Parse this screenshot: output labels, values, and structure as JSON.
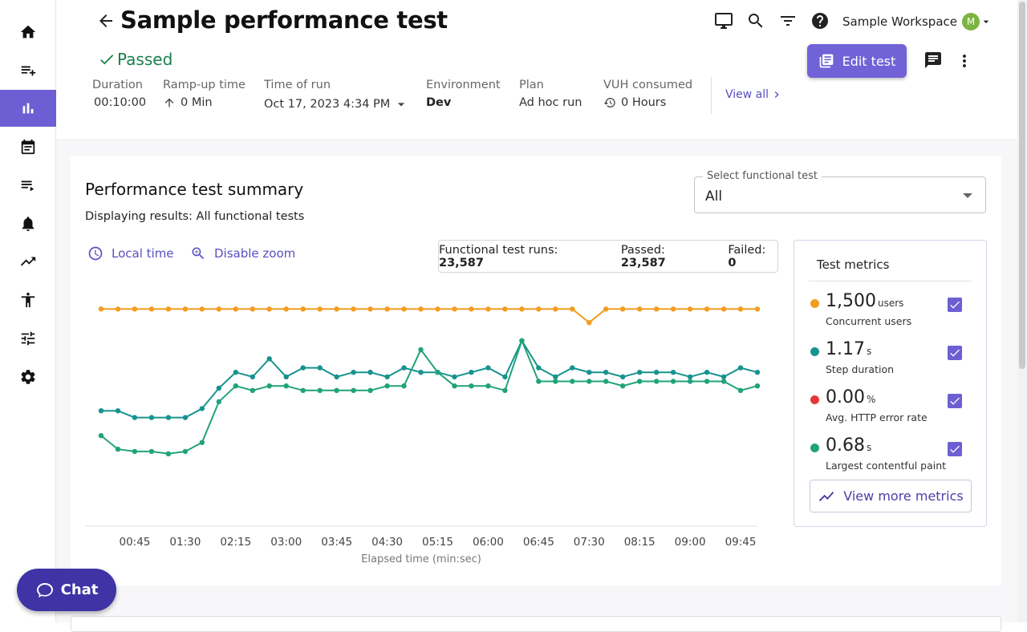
{
  "header": {
    "title": "Sample performance test",
    "status": "Passed",
    "workspace": "Sample Workspace",
    "avatar_initial": "M",
    "edit_label": "Edit test",
    "view_all": "View all",
    "meta": [
      {
        "label": "Duration",
        "value": "00:10:00"
      },
      {
        "label": "Ramp-up time",
        "value": "0 Min"
      },
      {
        "label": "Time of run",
        "value": "Oct 17, 2023 4:34 PM"
      },
      {
        "label": "Environment",
        "value": "Dev"
      },
      {
        "label": "Plan",
        "value": "Ad hoc run"
      },
      {
        "label": "VUH consumed",
        "value": "0 Hours"
      }
    ]
  },
  "sidebar": {
    "items": [
      {
        "icon": "home-icon"
      },
      {
        "icon": "playlist-add-icon"
      },
      {
        "icon": "bar-chart-icon",
        "active": true
      },
      {
        "icon": "calendar-icon"
      },
      {
        "icon": "queue-icon"
      },
      {
        "icon": "bell-icon"
      },
      {
        "icon": "trending-up-icon"
      },
      {
        "icon": "accessibility-icon"
      },
      {
        "icon": "tune-icon"
      },
      {
        "icon": "gear-icon"
      }
    ]
  },
  "summary": {
    "title": "Performance test summary",
    "subtitle": "Displaying results: All functional tests",
    "select_label": "Select functional test",
    "select_value": "All",
    "local_time": "Local time",
    "disable_zoom": "Disable zoom",
    "runs_label": "Functional test runs:",
    "runs_value": "23,587",
    "passed_label": "Passed:",
    "passed_value": "23,587",
    "failed_label": "Failed:",
    "failed_value": "0"
  },
  "metrics": {
    "title": "Test metrics",
    "items": [
      {
        "value": "1,500",
        "unit": "users",
        "name": "Concurrent users",
        "color": "#f29d1f"
      },
      {
        "value": "1.17",
        "unit": "s",
        "name": "Step duration",
        "color": "#17938f"
      },
      {
        "value": "0.00",
        "unit": "%",
        "name": "Avg. HTTP error rate",
        "color": "#e53935"
      },
      {
        "value": "0.68",
        "unit": "s",
        "name": "Largest contentful paint",
        "color": "#20a37a"
      }
    ],
    "view_more": "View more metrics"
  },
  "chat": {
    "label": "Chat"
  },
  "chart_data": {
    "type": "line",
    "xlabel": "Elapsed time (min:sec)",
    "tick_labels": [
      "00:45",
      "01:30",
      "02:15",
      "03:00",
      "03:45",
      "04:30",
      "05:15",
      "06:00",
      "06:45",
      "07:30",
      "08:15",
      "09:00",
      "09:45"
    ],
    "x": [
      15,
      30,
      45,
      60,
      75,
      90,
      105,
      120,
      135,
      150,
      165,
      180,
      195,
      210,
      225,
      240,
      255,
      270,
      285,
      300,
      315,
      330,
      345,
      360,
      375,
      390,
      405,
      420,
      435,
      450,
      465,
      480,
      495,
      510,
      525,
      540,
      555,
      570,
      585,
      600
    ],
    "series": [
      {
        "color": "#f29d1f",
        "values": [
          0.96,
          0.96,
          0.96,
          0.96,
          0.96,
          0.96,
          0.96,
          0.96,
          0.96,
          0.96,
          0.96,
          0.96,
          0.96,
          0.96,
          0.96,
          0.96,
          0.96,
          0.96,
          0.96,
          0.96,
          0.96,
          0.96,
          0.96,
          0.96,
          0.96,
          0.96,
          0.96,
          0.96,
          0.96,
          0.9,
          0.96,
          0.96,
          0.96,
          0.96,
          0.96,
          0.96,
          0.96,
          0.96,
          0.96,
          0.96
        ]
      },
      {
        "color": "#17938f",
        "values": [
          0.51,
          0.51,
          0.48,
          0.48,
          0.48,
          0.48,
          0.52,
          0.61,
          0.68,
          0.66,
          0.74,
          0.66,
          0.7,
          0.7,
          0.66,
          0.68,
          0.68,
          0.66,
          0.7,
          0.68,
          0.68,
          0.66,
          0.68,
          0.7,
          0.66,
          0.82,
          0.7,
          0.66,
          0.7,
          0.68,
          0.68,
          0.66,
          0.68,
          0.68,
          0.68,
          0.66,
          0.68,
          0.66,
          0.7,
          0.68
        ]
      },
      {
        "color": "#20a37a",
        "values": [
          0.4,
          0.34,
          0.33,
          0.33,
          0.32,
          0.33,
          0.37,
          0.55,
          0.62,
          0.6,
          0.62,
          0.62,
          0.6,
          0.6,
          0.6,
          0.6,
          0.6,
          0.62,
          0.62,
          0.78,
          0.68,
          0.62,
          0.62,
          0.62,
          0.6,
          0.82,
          0.64,
          0.64,
          0.64,
          0.64,
          0.64,
          0.62,
          0.64,
          0.64,
          0.64,
          0.64,
          0.64,
          0.64,
          0.6,
          0.62
        ]
      }
    ]
  }
}
